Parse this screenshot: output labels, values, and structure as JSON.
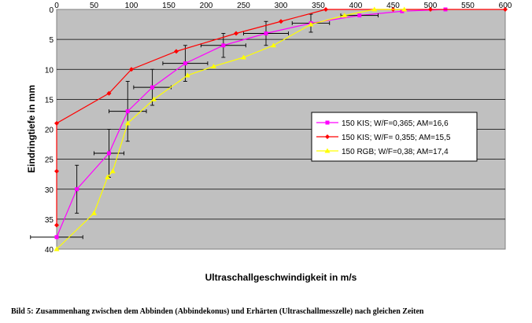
{
  "chart_data": {
    "type": "scatter",
    "xlabel": "Ultraschallgeschwindigkeit in m/s",
    "ylabel": "Eindringtiefe in mm",
    "xlim": [
      0,
      600
    ],
    "ylim": [
      0,
      40
    ],
    "y_inverted": true,
    "x_axis_position": "top",
    "x_ticks": [
      0,
      50,
      100,
      150,
      200,
      250,
      300,
      350,
      400,
      450,
      500,
      550,
      600
    ],
    "y_ticks": [
      0,
      5,
      10,
      15,
      20,
      25,
      30,
      35,
      40
    ],
    "grid": "horizontal",
    "plot_background": "#c0c0c0",
    "legend_position": "right",
    "series": [
      {
        "name": "150 KIS; W/F=0,365; AM=16,6",
        "color": "#ff00ff",
        "marker": "square",
        "x": [
          520,
          462,
          405,
          340,
          280,
          223,
          172,
          128,
          95,
          70,
          27,
          0
        ],
        "y": [
          0,
          0.3,
          1,
          2.3,
          4,
          6,
          9,
          13,
          17,
          24,
          30,
          38
        ],
        "x_error": [
          0,
          0,
          25,
          25,
          30,
          30,
          30,
          25,
          25,
          20,
          0,
          35
        ],
        "y_error": [
          0,
          0,
          0,
          1.5,
          2,
          2,
          3,
          3,
          5,
          4,
          4,
          0
        ]
      },
      {
        "name": "150 KIS; W/F= 0,355; AM=15,5",
        "color": "#ff0000",
        "marker": "diamond",
        "x": [
          600,
          500,
          450,
          360,
          300,
          240,
          160,
          100,
          70,
          0,
          0,
          0
        ],
        "y": [
          0,
          0,
          0,
          0,
          2,
          4,
          7,
          10,
          14,
          19,
          27,
          36
        ],
        "x_error": [],
        "y_error": []
      },
      {
        "name": "150 RGB; W/F=0,38; AM=17,4",
        "color": "#ffff00",
        "marker": "triangle",
        "x": [
          465,
          425,
          385,
          340,
          290,
          250,
          210,
          175,
          130,
          95,
          75,
          68,
          50,
          0
        ],
        "y": [
          0,
          0,
          1,
          2.5,
          6,
          8,
          9.5,
          11,
          15,
          19,
          27,
          28,
          34,
          40
        ],
        "x_error": [],
        "y_error": []
      }
    ]
  },
  "caption": "Bild 5: Zusammenhang zwischen dem Abbinden (Abbindekonus) und Erhärten (Ultraschallmesszelle) nach gleichen Zeiten"
}
